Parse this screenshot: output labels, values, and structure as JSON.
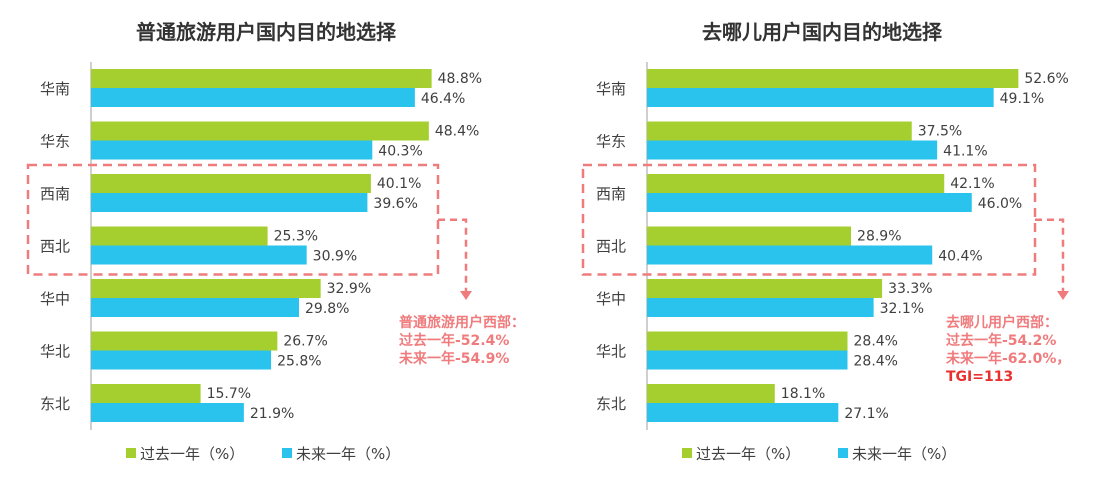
{
  "colors": {
    "past": "#a4cf2f",
    "future": "#2ac3ee",
    "highlight": "#ef7b7d",
    "tgi": "#e8312f"
  },
  "legend": {
    "past": "过去一年（%）",
    "future": "未来一年（%）"
  },
  "chart_data": [
    {
      "type": "bar",
      "orientation": "horizontal",
      "title": "普通旅游用户国内目的地选择",
      "categories": [
        "华南",
        "华东",
        "西南",
        "西北",
        "华中",
        "华北",
        "东北"
      ],
      "series": [
        {
          "name": "过去一年（%）",
          "values": [
            48.8,
            48.4,
            40.1,
            25.3,
            32.9,
            26.7,
            15.7
          ]
        },
        {
          "name": "未来一年（%）",
          "values": [
            46.4,
            40.3,
            39.6,
            30.9,
            29.8,
            25.8,
            21.9
          ]
        }
      ],
      "highlighted_categories": [
        "西南",
        "西北"
      ],
      "annotation": [
        "普通旅游用户西部：",
        "过去一年-52.4%",
        "未来一年-54.9%"
      ],
      "grid": false,
      "legend_position": "bottom"
    },
    {
      "type": "bar",
      "orientation": "horizontal",
      "title": "去哪儿用户国内目的地选择",
      "categories": [
        "华南",
        "华东",
        "西南",
        "西北",
        "华中",
        "华北",
        "东北"
      ],
      "series": [
        {
          "name": "过去一年（%）",
          "values": [
            52.6,
            37.5,
            42.1,
            28.9,
            33.3,
            28.4,
            18.1
          ]
        },
        {
          "name": "未来一年（%）",
          "values": [
            49.1,
            41.1,
            46.0,
            40.4,
            32.1,
            28.4,
            27.1
          ]
        }
      ],
      "highlighted_categories": [
        "西南",
        "西北"
      ],
      "annotation": [
        "去哪儿用户西部：",
        "过去一年-54.2%",
        "未来一年-62.0%，",
        "TGI=113"
      ],
      "grid": false,
      "legend_position": "bottom"
    }
  ]
}
